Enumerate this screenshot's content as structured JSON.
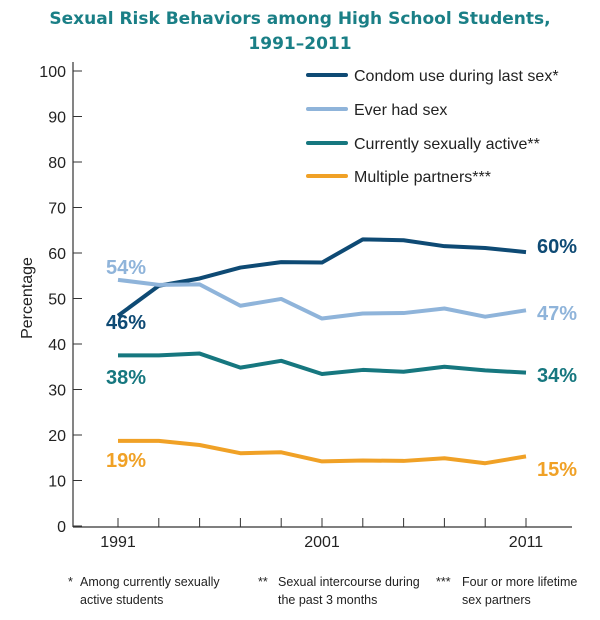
{
  "chart_data": {
    "type": "line",
    "title": "Sexual Risk Behaviors among High School Students, 1991–2011",
    "title_lines": [
      "Sexual Risk Behaviors among High School Students,",
      "1991–2011"
    ],
    "xlabel": "",
    "ylabel": "Percentage",
    "ylim": [
      0,
      100
    ],
    "yticks": [
      0,
      10,
      20,
      30,
      40,
      50,
      60,
      70,
      80,
      90,
      100
    ],
    "x": [
      1991,
      1993,
      1995,
      1997,
      1999,
      2001,
      2003,
      2005,
      2007,
      2009,
      2011
    ],
    "xtick_labels": [
      "1991",
      "2001",
      "2011"
    ],
    "grid": false,
    "legend_placement": "top-right",
    "series": [
      {
        "name": "Condom use during last sex*",
        "color": "#0e4a74",
        "values": [
          46.2,
          52.8,
          54.4,
          56.8,
          58.0,
          57.9,
          63.0,
          62.8,
          61.5,
          61.1,
          60.2
        ],
        "start_label": "46%",
        "end_label": "60%"
      },
      {
        "name": "Ever had sex",
        "color": "#8fb4da",
        "values": [
          54.1,
          53.0,
          53.1,
          48.4,
          49.9,
          45.6,
          46.7,
          46.8,
          47.8,
          46.0,
          47.4
        ],
        "start_label": "54%",
        "end_label": "47%"
      },
      {
        "name": "Currently sexually active**",
        "color": "#16777f",
        "values": [
          37.5,
          37.5,
          37.9,
          34.8,
          36.3,
          33.4,
          34.3,
          33.9,
          35.0,
          34.2,
          33.7
        ],
        "start_label": "38%",
        "end_label": "34%"
      },
      {
        "name": "Multiple partners***",
        "color": "#f0a126",
        "values": [
          18.7,
          18.7,
          17.8,
          16.0,
          16.2,
          14.2,
          14.4,
          14.3,
          14.9,
          13.8,
          15.3
        ],
        "start_label": "19%",
        "end_label": "15%"
      }
    ],
    "footnotes": [
      {
        "mark": "*",
        "lines": [
          "Among currently sexually",
          "active students"
        ]
      },
      {
        "mark": "**",
        "lines": [
          "Sexual intercourse during",
          "the past 3 months"
        ]
      },
      {
        "mark": "***",
        "lines": [
          "Four or more lifetime",
          "sex partners"
        ]
      }
    ]
  }
}
